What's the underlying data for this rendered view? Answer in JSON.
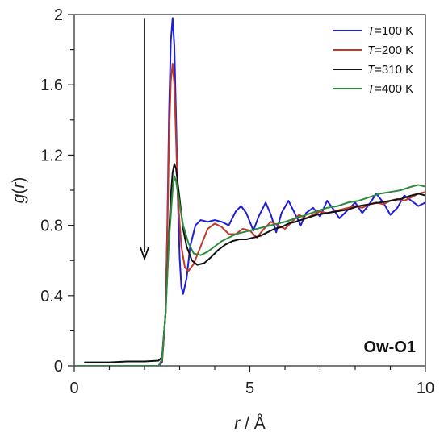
{
  "chart_data": {
    "type": "line",
    "xlabel": "r / Å",
    "ylabel": "g(r)",
    "xlim": [
      0,
      10
    ],
    "ylim": [
      0,
      2
    ],
    "x_ticks": [
      0,
      5,
      10
    ],
    "x_tick_labels": [
      "0",
      "5",
      "10"
    ],
    "y_ticks": [
      0,
      0.4,
      0.8,
      1.2,
      1.6,
      2
    ],
    "y_tick_labels": [
      "0",
      "0.4",
      "0.8",
      "1.2",
      "1.6",
      "2"
    ],
    "grid": false,
    "legend_position": "top-right",
    "annotation": "Ow-O1",
    "arrow": {
      "x": 2.0,
      "y_start": 1.98,
      "y_end": 0.61
    },
    "series": [
      {
        "name": "T=100 K",
        "label_var": "T",
        "label_rest": "=100 K",
        "color": "#1f1fd6",
        "points": [
          [
            0,
            0
          ],
          [
            2.4,
            0
          ],
          [
            2.5,
            0.02
          ],
          [
            2.6,
            0.3
          ],
          [
            2.65,
            0.8
          ],
          [
            2.7,
            1.45
          ],
          [
            2.75,
            1.85
          ],
          [
            2.8,
            1.98
          ],
          [
            2.85,
            1.82
          ],
          [
            2.9,
            1.4
          ],
          [
            2.95,
            0.95
          ],
          [
            3.0,
            0.62
          ],
          [
            3.05,
            0.45
          ],
          [
            3.1,
            0.41
          ],
          [
            3.2,
            0.5
          ],
          [
            3.3,
            0.68
          ],
          [
            3.45,
            0.8
          ],
          [
            3.6,
            0.83
          ],
          [
            3.8,
            0.82
          ],
          [
            4.0,
            0.83
          ],
          [
            4.2,
            0.82
          ],
          [
            4.4,
            0.8
          ],
          [
            4.6,
            0.88
          ],
          [
            4.75,
            0.91
          ],
          [
            4.9,
            0.87
          ],
          [
            5.1,
            0.77
          ],
          [
            5.25,
            0.85
          ],
          [
            5.45,
            0.93
          ],
          [
            5.6,
            0.86
          ],
          [
            5.75,
            0.76
          ],
          [
            5.9,
            0.87
          ],
          [
            6.1,
            0.94
          ],
          [
            6.3,
            0.86
          ],
          [
            6.45,
            0.8
          ],
          [
            6.6,
            0.87
          ],
          [
            6.8,
            0.9
          ],
          [
            7.0,
            0.85
          ],
          [
            7.2,
            0.94
          ],
          [
            7.35,
            0.9
          ],
          [
            7.55,
            0.84
          ],
          [
            7.75,
            0.88
          ],
          [
            8.0,
            0.93
          ],
          [
            8.2,
            0.87
          ],
          [
            8.4,
            0.92
          ],
          [
            8.6,
            0.98
          ],
          [
            8.8,
            0.93
          ],
          [
            9.0,
            0.86
          ],
          [
            9.2,
            0.9
          ],
          [
            9.4,
            0.97
          ],
          [
            9.6,
            0.94
          ],
          [
            9.8,
            0.91
          ],
          [
            10.0,
            0.93
          ]
        ]
      },
      {
        "name": "T=200 K",
        "label_var": "T",
        "label_rest": "=200 K",
        "color": "#c0392b",
        "points": [
          [
            0,
            0
          ],
          [
            2.4,
            0
          ],
          [
            2.5,
            0.03
          ],
          [
            2.6,
            0.3
          ],
          [
            2.65,
            0.75
          ],
          [
            2.7,
            1.3
          ],
          [
            2.75,
            1.62
          ],
          [
            2.8,
            1.72
          ],
          [
            2.85,
            1.6
          ],
          [
            2.9,
            1.28
          ],
          [
            2.95,
            0.95
          ],
          [
            3.05,
            0.68
          ],
          [
            3.15,
            0.56
          ],
          [
            3.25,
            0.54
          ],
          [
            3.4,
            0.58
          ],
          [
            3.6,
            0.68
          ],
          [
            3.8,
            0.78
          ],
          [
            4.0,
            0.81
          ],
          [
            4.2,
            0.79
          ],
          [
            4.4,
            0.75
          ],
          [
            4.6,
            0.75
          ],
          [
            4.8,
            0.78
          ],
          [
            5.0,
            0.77
          ],
          [
            5.2,
            0.73
          ],
          [
            5.4,
            0.78
          ],
          [
            5.6,
            0.82
          ],
          [
            5.8,
            0.8
          ],
          [
            6.0,
            0.78
          ],
          [
            6.2,
            0.82
          ],
          [
            6.4,
            0.86
          ],
          [
            6.6,
            0.84
          ],
          [
            6.8,
            0.86
          ],
          [
            7.0,
            0.88
          ],
          [
            7.2,
            0.87
          ],
          [
            7.4,
            0.88
          ],
          [
            7.6,
            0.89
          ],
          [
            7.8,
            0.9
          ],
          [
            8.0,
            0.91
          ],
          [
            8.2,
            0.9
          ],
          [
            8.4,
            0.92
          ],
          [
            8.6,
            0.93
          ],
          [
            8.8,
            0.92
          ],
          [
            9.0,
            0.94
          ],
          [
            9.2,
            0.95
          ],
          [
            9.4,
            0.94
          ],
          [
            9.6,
            0.96
          ],
          [
            9.8,
            0.98
          ],
          [
            10.0,
            0.99
          ]
        ]
      },
      {
        "name": "T=310 K",
        "label_var": "T",
        "label_rest": "=310 K",
        "color": "#111111",
        "points": [
          [
            0.3,
            0.02
          ],
          [
            0.8,
            0.02
          ],
          [
            1.0,
            0.02
          ],
          [
            1.5,
            0.025
          ],
          [
            2.0,
            0.025
          ],
          [
            2.4,
            0.03
          ],
          [
            2.5,
            0.05
          ],
          [
            2.6,
            0.3
          ],
          [
            2.7,
            0.75
          ],
          [
            2.75,
            0.97
          ],
          [
            2.8,
            1.1
          ],
          [
            2.85,
            1.15
          ],
          [
            2.9,
            1.12
          ],
          [
            3.0,
            0.95
          ],
          [
            3.1,
            0.78
          ],
          [
            3.2,
            0.68
          ],
          [
            3.35,
            0.6
          ],
          [
            3.5,
            0.575
          ],
          [
            3.7,
            0.585
          ],
          [
            3.9,
            0.62
          ],
          [
            4.1,
            0.66
          ],
          [
            4.3,
            0.69
          ],
          [
            4.5,
            0.71
          ],
          [
            4.7,
            0.72
          ],
          [
            4.9,
            0.72
          ],
          [
            5.1,
            0.73
          ],
          [
            5.3,
            0.74
          ],
          [
            5.5,
            0.76
          ],
          [
            5.7,
            0.78
          ],
          [
            5.9,
            0.79
          ],
          [
            6.1,
            0.81
          ],
          [
            6.3,
            0.82
          ],
          [
            6.6,
            0.84
          ],
          [
            6.9,
            0.86
          ],
          [
            7.2,
            0.87
          ],
          [
            7.5,
            0.88
          ],
          [
            7.8,
            0.89
          ],
          [
            8.1,
            0.91
          ],
          [
            8.4,
            0.92
          ],
          [
            8.7,
            0.93
          ],
          [
            9.0,
            0.94
          ],
          [
            9.3,
            0.95
          ],
          [
            9.6,
            0.97
          ],
          [
            9.8,
            0.98
          ],
          [
            10.0,
            0.97
          ]
        ]
      },
      {
        "name": "T=400 K",
        "label_var": "T",
        "label_rest": "=400 K",
        "color": "#2e8b3e",
        "points": [
          [
            0,
            0
          ],
          [
            2.4,
            0
          ],
          [
            2.5,
            0.04
          ],
          [
            2.6,
            0.3
          ],
          [
            2.7,
            0.72
          ],
          [
            2.8,
            1.0
          ],
          [
            2.85,
            1.08
          ],
          [
            2.9,
            1.05
          ],
          [
            3.0,
            0.92
          ],
          [
            3.1,
            0.8
          ],
          [
            3.25,
            0.7
          ],
          [
            3.4,
            0.64
          ],
          [
            3.6,
            0.63
          ],
          [
            3.8,
            0.65
          ],
          [
            4.0,
            0.68
          ],
          [
            4.2,
            0.71
          ],
          [
            4.4,
            0.73
          ],
          [
            4.6,
            0.75
          ],
          [
            4.8,
            0.76
          ],
          [
            5.0,
            0.77
          ],
          [
            5.2,
            0.78
          ],
          [
            5.4,
            0.79
          ],
          [
            5.6,
            0.8
          ],
          [
            5.8,
            0.81
          ],
          [
            6.0,
            0.82
          ],
          [
            6.3,
            0.84
          ],
          [
            6.6,
            0.86
          ],
          [
            6.9,
            0.88
          ],
          [
            7.2,
            0.9
          ],
          [
            7.5,
            0.91
          ],
          [
            7.8,
            0.93
          ],
          [
            8.1,
            0.94
          ],
          [
            8.4,
            0.96
          ],
          [
            8.7,
            0.98
          ],
          [
            9.0,
            0.99
          ],
          [
            9.3,
            1.0
          ],
          [
            9.6,
            1.02
          ],
          [
            9.8,
            1.03
          ],
          [
            10.0,
            1.02
          ]
        ]
      }
    ]
  }
}
